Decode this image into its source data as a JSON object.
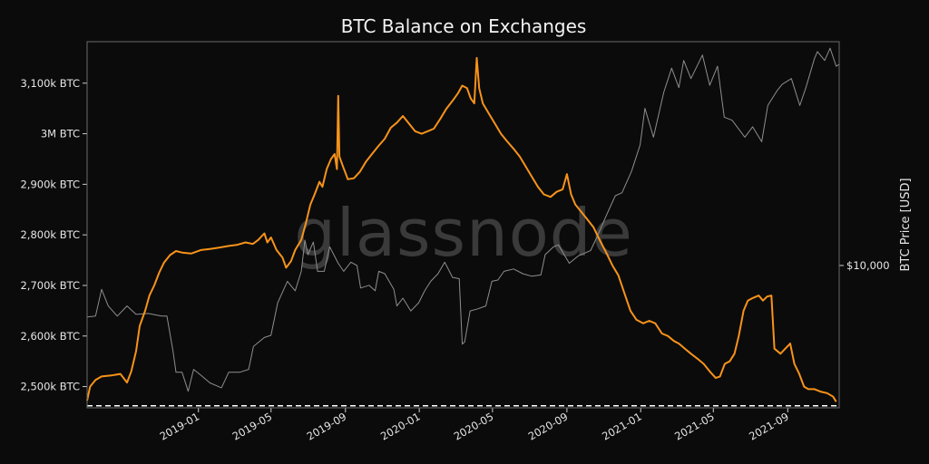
{
  "chart_data": {
    "type": "line",
    "title": "BTC Balance on Exchanges",
    "watermark": "glassnode",
    "ylabel_left": "",
    "ylabel_right": "BTC Price [USD]",
    "y_left_ticks": [
      {
        "value": 2500,
        "label": "2,500k BTC"
      },
      {
        "value": 2600,
        "label": "2,600k BTC"
      },
      {
        "value": 2700,
        "label": "2,700k BTC"
      },
      {
        "value": 2800,
        "label": "2,800k BTC"
      },
      {
        "value": 2900,
        "label": "2,900k BTC"
      },
      {
        "value": 3000,
        "label": "3M BTC"
      },
      {
        "value": 3100,
        "label": "3,100k BTC"
      }
    ],
    "y_left_range": [
      2458,
      3182
    ],
    "y_right_ticks": [
      {
        "value": 10000,
        "label": "$10,000"
      }
    ],
    "y_right_scale": "log",
    "y_right_range": [
      2850,
      72000
    ],
    "x_range": [
      "2018-07-01",
      "2021-11-25"
    ],
    "x_ticks": [
      {
        "value": "2019-01-01",
        "label": "2019-01"
      },
      {
        "value": "2019-05-01",
        "label": "2019-05"
      },
      {
        "value": "2019-09-01",
        "label": "2019-09"
      },
      {
        "value": "2020-01-01",
        "label": "2020-01"
      },
      {
        "value": "2020-05-01",
        "label": "2020-05"
      },
      {
        "value": "2020-09-01",
        "label": "2020-09"
      },
      {
        "value": "2021-01-01",
        "label": "2021-01"
      },
      {
        "value": "2021-05-01",
        "label": "2021-05"
      },
      {
        "value": "2021-09-01",
        "label": "2021-09"
      }
    ],
    "reference_line": {
      "value": 2462,
      "style": "dashed",
      "color": "#ffffff"
    },
    "grid": false,
    "legend": "none",
    "series": [
      {
        "axis": "left",
        "color": "#f7931a",
        "points": [
          [
            "2018-07-01",
            2472
          ],
          [
            "2018-07-06",
            2500
          ],
          [
            "2018-07-15",
            2513
          ],
          [
            "2018-07-25",
            2520
          ],
          [
            "2018-08-10",
            2522
          ],
          [
            "2018-08-25",
            2525
          ],
          [
            "2018-09-05",
            2508
          ],
          [
            "2018-09-12",
            2530
          ],
          [
            "2018-09-20",
            2570
          ],
          [
            "2018-09-26",
            2620
          ],
          [
            "2018-10-05",
            2650
          ],
          [
            "2018-10-12",
            2680
          ],
          [
            "2018-10-20",
            2700
          ],
          [
            "2018-10-28",
            2725
          ],
          [
            "2018-11-05",
            2745
          ],
          [
            "2018-11-15",
            2760
          ],
          [
            "2018-11-25",
            2768
          ],
          [
            "2018-12-05",
            2765
          ],
          [
            "2018-12-20",
            2763
          ],
          [
            "2019-01-05",
            2770
          ],
          [
            "2019-01-20",
            2772
          ],
          [
            "2019-02-05",
            2775
          ],
          [
            "2019-02-20",
            2778
          ],
          [
            "2019-03-05",
            2780
          ],
          [
            "2019-03-20",
            2785
          ],
          [
            "2019-04-01",
            2782
          ],
          [
            "2019-04-10",
            2790
          ],
          [
            "2019-04-20",
            2803
          ],
          [
            "2019-04-25",
            2785
          ],
          [
            "2019-05-01",
            2795
          ],
          [
            "2019-05-10",
            2770
          ],
          [
            "2019-05-20",
            2755
          ],
          [
            "2019-05-26",
            2735
          ],
          [
            "2019-06-03",
            2748
          ],
          [
            "2019-06-10",
            2770
          ],
          [
            "2019-06-20",
            2790
          ],
          [
            "2019-06-28",
            2825
          ],
          [
            "2019-07-05",
            2860
          ],
          [
            "2019-07-12",
            2880
          ],
          [
            "2019-07-20",
            2905
          ],
          [
            "2019-07-25",
            2895
          ],
          [
            "2019-08-01",
            2930
          ],
          [
            "2019-08-08",
            2950
          ],
          [
            "2019-08-14",
            2960
          ],
          [
            "2019-08-18",
            2930
          ],
          [
            "2019-08-20",
            3075
          ],
          [
            "2019-08-22",
            2955
          ],
          [
            "2019-08-28",
            2935
          ],
          [
            "2019-09-05",
            2910
          ],
          [
            "2019-09-15",
            2912
          ],
          [
            "2019-09-25",
            2925
          ],
          [
            "2019-10-05",
            2945
          ],
          [
            "2019-10-15",
            2960
          ],
          [
            "2019-10-25",
            2975
          ],
          [
            "2019-11-05",
            2990
          ],
          [
            "2019-11-15",
            3012
          ],
          [
            "2019-11-25",
            3022
          ],
          [
            "2019-12-05",
            3035
          ],
          [
            "2019-12-15",
            3020
          ],
          [
            "2019-12-25",
            3005
          ],
          [
            "2020-01-05",
            3000
          ],
          [
            "2020-01-15",
            3005
          ],
          [
            "2020-01-25",
            3010
          ],
          [
            "2020-02-05",
            3030
          ],
          [
            "2020-02-15",
            3050
          ],
          [
            "2020-02-25",
            3065
          ],
          [
            "2020-03-05",
            3080
          ],
          [
            "2020-03-12",
            3095
          ],
          [
            "2020-03-20",
            3090
          ],
          [
            "2020-03-26",
            3070
          ],
          [
            "2020-04-01",
            3060
          ],
          [
            "2020-04-05",
            3150
          ],
          [
            "2020-04-09",
            3090
          ],
          [
            "2020-04-15",
            3060
          ],
          [
            "2020-04-25",
            3040
          ],
          [
            "2020-05-05",
            3020
          ],
          [
            "2020-05-15",
            3000
          ],
          [
            "2020-05-25",
            2985
          ],
          [
            "2020-06-05",
            2970
          ],
          [
            "2020-06-15",
            2955
          ],
          [
            "2020-06-25",
            2935
          ],
          [
            "2020-07-05",
            2915
          ],
          [
            "2020-07-15",
            2895
          ],
          [
            "2020-07-25",
            2880
          ],
          [
            "2020-08-05",
            2875
          ],
          [
            "2020-08-15",
            2885
          ],
          [
            "2020-08-25",
            2890
          ],
          [
            "2020-09-01",
            2920
          ],
          [
            "2020-09-08",
            2880
          ],
          [
            "2020-09-15",
            2860
          ],
          [
            "2020-09-25",
            2845
          ],
          [
            "2020-10-05",
            2830
          ],
          [
            "2020-10-15",
            2815
          ],
          [
            "2020-10-25",
            2790
          ],
          [
            "2020-11-05",
            2765
          ],
          [
            "2020-11-15",
            2740
          ],
          [
            "2020-11-25",
            2720
          ],
          [
            "2020-12-05",
            2685
          ],
          [
            "2020-12-15",
            2650
          ],
          [
            "2020-12-25",
            2632
          ],
          [
            "2021-01-05",
            2625
          ],
          [
            "2021-01-15",
            2630
          ],
          [
            "2021-01-25",
            2625
          ],
          [
            "2021-02-05",
            2605
          ],
          [
            "2021-02-15",
            2600
          ],
          [
            "2021-02-25",
            2590
          ],
          [
            "2021-03-05",
            2585
          ],
          [
            "2021-03-15",
            2575
          ],
          [
            "2021-03-25",
            2565
          ],
          [
            "2021-04-05",
            2555
          ],
          [
            "2021-04-15",
            2545
          ],
          [
            "2021-04-25",
            2530
          ],
          [
            "2021-05-05",
            2517
          ],
          [
            "2021-05-12",
            2520
          ],
          [
            "2021-05-20",
            2545
          ],
          [
            "2021-05-28",
            2550
          ],
          [
            "2021-06-05",
            2565
          ],
          [
            "2021-06-12",
            2600
          ],
          [
            "2021-06-20",
            2650
          ],
          [
            "2021-06-27",
            2670
          ],
          [
            "2021-07-05",
            2675
          ],
          [
            "2021-07-15",
            2680
          ],
          [
            "2021-07-22",
            2670
          ],
          [
            "2021-07-29",
            2678
          ],
          [
            "2021-08-05",
            2680
          ],
          [
            "2021-08-10",
            2575
          ],
          [
            "2021-08-20",
            2565
          ],
          [
            "2021-08-28",
            2575
          ],
          [
            "2021-09-05",
            2585
          ],
          [
            "2021-09-12",
            2545
          ],
          [
            "2021-09-20",
            2525
          ],
          [
            "2021-09-28",
            2500
          ],
          [
            "2021-10-05",
            2495
          ],
          [
            "2021-10-15",
            2495
          ],
          [
            "2021-10-25",
            2490
          ],
          [
            "2021-11-05",
            2487
          ],
          [
            "2021-11-15",
            2480
          ],
          [
            "2021-11-20",
            2470
          ]
        ]
      },
      {
        "axis": "right",
        "color": "#8e8e8e",
        "points": [
          [
            "2018-07-01",
            6350
          ],
          [
            "2018-07-15",
            6400
          ],
          [
            "2018-07-25",
            8100
          ],
          [
            "2018-08-05",
            7000
          ],
          [
            "2018-08-20",
            6400
          ],
          [
            "2018-09-05",
            7000
          ],
          [
            "2018-09-20",
            6500
          ],
          [
            "2018-10-10",
            6550
          ],
          [
            "2018-11-01",
            6400
          ],
          [
            "2018-11-10",
            6400
          ],
          [
            "2018-11-20",
            4700
          ],
          [
            "2018-11-25",
            3900
          ],
          [
            "2018-12-05",
            3900
          ],
          [
            "2018-12-15",
            3300
          ],
          [
            "2018-12-24",
            4000
          ],
          [
            "2019-01-05",
            3800
          ],
          [
            "2019-01-20",
            3550
          ],
          [
            "2019-02-08",
            3400
          ],
          [
            "2019-02-20",
            3900
          ],
          [
            "2019-03-10",
            3900
          ],
          [
            "2019-03-25",
            4000
          ],
          [
            "2019-04-02",
            4900
          ],
          [
            "2019-04-20",
            5300
          ],
          [
            "2019-05-01",
            5400
          ],
          [
            "2019-05-12",
            7200
          ],
          [
            "2019-05-28",
            8700
          ],
          [
            "2019-06-10",
            8000
          ],
          [
            "2019-06-20",
            9500
          ],
          [
            "2019-06-26",
            12500
          ],
          [
            "2019-07-01",
            11000
          ],
          [
            "2019-07-10",
            12300
          ],
          [
            "2019-07-17",
            9500
          ],
          [
            "2019-07-28",
            9500
          ],
          [
            "2019-08-06",
            11800
          ],
          [
            "2019-08-20",
            10200
          ],
          [
            "2019-08-29",
            9500
          ],
          [
            "2019-09-10",
            10300
          ],
          [
            "2019-09-20",
            10000
          ],
          [
            "2019-09-26",
            8200
          ],
          [
            "2019-10-10",
            8400
          ],
          [
            "2019-10-20",
            8000
          ],
          [
            "2019-10-26",
            9500
          ],
          [
            "2019-11-05",
            9300
          ],
          [
            "2019-11-20",
            8100
          ],
          [
            "2019-11-25",
            7000
          ],
          [
            "2019-12-05",
            7500
          ],
          [
            "2019-12-18",
            6700
          ],
          [
            "2019-12-31",
            7200
          ],
          [
            "2020-01-10",
            8000
          ],
          [
            "2020-01-20",
            8700
          ],
          [
            "2020-02-01",
            9300
          ],
          [
            "2020-02-12",
            10300
          ],
          [
            "2020-02-25",
            9000
          ],
          [
            "2020-03-07",
            8900
          ],
          [
            "2020-03-12",
            5000
          ],
          [
            "2020-03-16",
            5100
          ],
          [
            "2020-03-25",
            6700
          ],
          [
            "2020-04-05",
            6800
          ],
          [
            "2020-04-20",
            7000
          ],
          [
            "2020-04-30",
            8700
          ],
          [
            "2020-05-10",
            8800
          ],
          [
            "2020-05-20",
            9500
          ],
          [
            "2020-06-05",
            9700
          ],
          [
            "2020-06-20",
            9300
          ],
          [
            "2020-07-05",
            9100
          ],
          [
            "2020-07-20",
            9200
          ],
          [
            "2020-07-27",
            11000
          ],
          [
            "2020-08-10",
            11800
          ],
          [
            "2020-08-18",
            12000
          ],
          [
            "2020-09-05",
            10200
          ],
          [
            "2020-09-20",
            10900
          ],
          [
            "2020-10-10",
            11400
          ],
          [
            "2020-10-21",
            12900
          ],
          [
            "2020-11-05",
            15500
          ],
          [
            "2020-11-20",
            18500
          ],
          [
            "2020-12-01",
            19000
          ],
          [
            "2020-12-17",
            23000
          ],
          [
            "2020-12-31",
            29000
          ],
          [
            "2021-01-08",
            40000
          ],
          [
            "2021-01-22",
            31000
          ],
          [
            "2021-02-08",
            46000
          ],
          [
            "2021-02-21",
            57000
          ],
          [
            "2021-03-05",
            48000
          ],
          [
            "2021-03-13",
            61000
          ],
          [
            "2021-03-25",
            52000
          ],
          [
            "2021-04-13",
            64000
          ],
          [
            "2021-04-25",
            49000
          ],
          [
            "2021-05-08",
            58000
          ],
          [
            "2021-05-19",
            37000
          ],
          [
            "2021-06-01",
            36000
          ],
          [
            "2021-06-22",
            31000
          ],
          [
            "2021-07-05",
            34000
          ],
          [
            "2021-07-20",
            29800
          ],
          [
            "2021-07-30",
            41000
          ],
          [
            "2021-08-15",
            47000
          ],
          [
            "2021-08-23",
            49500
          ],
          [
            "2021-09-07",
            52000
          ],
          [
            "2021-09-21",
            41000
          ],
          [
            "2021-10-01",
            48000
          ],
          [
            "2021-10-15",
            62000
          ],
          [
            "2021-10-20",
            66000
          ],
          [
            "2021-11-01",
            61000
          ],
          [
            "2021-11-10",
            68000
          ],
          [
            "2021-11-20",
            58000
          ],
          [
            "2021-11-25",
            59000
          ]
        ]
      }
    ]
  }
}
